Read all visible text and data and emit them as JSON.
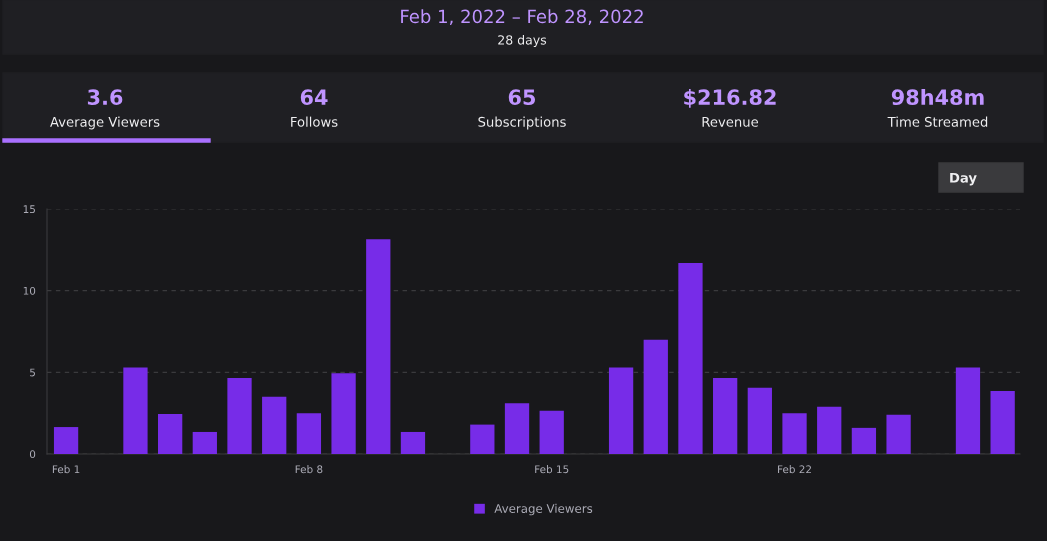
{
  "chart_data": {
    "type": "bar",
    "categories": [
      "Feb 1",
      null,
      null,
      null,
      null,
      null,
      null,
      "Feb 8",
      null,
      null,
      null,
      null,
      null,
      null,
      "Feb 15",
      null,
      null,
      null,
      null,
      null,
      null,
      "Feb 22",
      null,
      null,
      null,
      null,
      null,
      null
    ],
    "series": [
      {
        "name": "Average Viewers",
        "color": "#772ce8",
        "values": [
          1.65,
          0,
          5.3,
          2.45,
          1.35,
          4.65,
          3.5,
          2.5,
          4.95,
          13.15,
          1.35,
          0,
          1.8,
          3.1,
          2.65,
          0,
          5.3,
          7.0,
          11.7,
          4.65,
          4.05,
          2.5,
          2.9,
          1.6,
          2.4,
          0,
          5.3,
          3.85
        ]
      }
    ],
    "ylim": [
      0,
      15
    ],
    "yticks": [
      0,
      5,
      10,
      15
    ],
    "grid": "y",
    "legend": "bottom",
    "annotations": [
      "Feb 1, 2022 – Feb 28, 2022",
      "28 days",
      "3.6",
      "Average Viewers",
      "64",
      "Follows",
      "65",
      "Subscriptions",
      "$216.82",
      "Revenue",
      "98h48m",
      "Time Streamed",
      "Day"
    ]
  }
}
